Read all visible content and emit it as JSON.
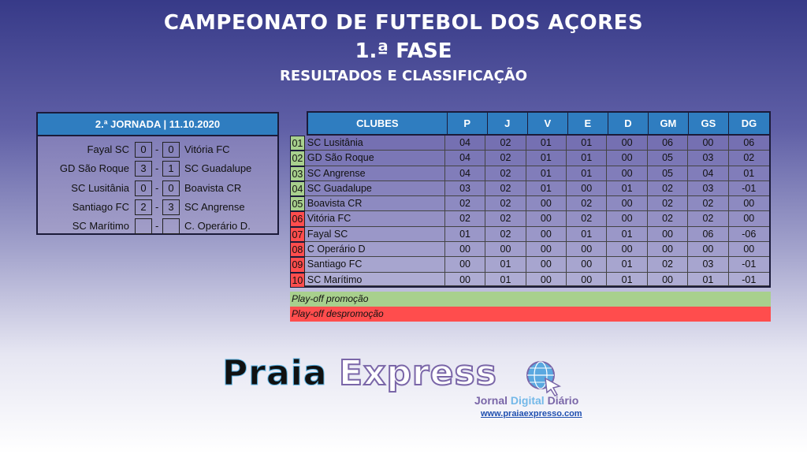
{
  "title": {
    "line1": "CAMPEONATO DE FUTEBOL DOS AÇORES",
    "line2": "1.ª  FASE",
    "line3": "RESULTADOS E CLASSIFICAÇÃO"
  },
  "games": {
    "header": "2.ª JORNADA | 11.10.2020",
    "separator": "-",
    "items": [
      {
        "home": "Fayal SC",
        "hs": "0",
        "as": "0",
        "away": "Vitória FC"
      },
      {
        "home": "GD São Roque",
        "hs": "3",
        "as": "1",
        "away": "SC Guadalupe"
      },
      {
        "home": "SC Lusitânia",
        "hs": "0",
        "as": "0",
        "away": "Boavista CR"
      },
      {
        "home": "Santiago FC",
        "hs": "2",
        "as": "3",
        "away": "SC Angrense"
      },
      {
        "home": "SC Marítimo",
        "hs": "",
        "as": "",
        "away": "C. Operário D."
      }
    ]
  },
  "standings": {
    "headers": [
      "CLUBES",
      "P",
      "J",
      "V",
      "E",
      "D",
      "GM",
      "GS",
      "DG"
    ],
    "rows": [
      {
        "rank": "01",
        "zone": "promo",
        "club": "SC Lusitânia",
        "v": [
          "04",
          "02",
          "01",
          "01",
          "00",
          "06",
          "00",
          "06"
        ]
      },
      {
        "rank": "02",
        "zone": "promo",
        "club": "GD São Roque",
        "v": [
          "04",
          "02",
          "01",
          "01",
          "00",
          "05",
          "03",
          "02"
        ]
      },
      {
        "rank": "03",
        "zone": "promo",
        "club": "SC Angrense",
        "v": [
          "04",
          "02",
          "01",
          "01",
          "00",
          "05",
          "04",
          "01"
        ]
      },
      {
        "rank": "04",
        "zone": "promo",
        "club": "SC Guadalupe",
        "v": [
          "03",
          "02",
          "01",
          "00",
          "01",
          "02",
          "03",
          "-01"
        ]
      },
      {
        "rank": "05",
        "zone": "promo",
        "club": "Boavista CR",
        "v": [
          "02",
          "02",
          "00",
          "02",
          "00",
          "02",
          "02",
          "00"
        ]
      },
      {
        "rank": "06",
        "zone": "releg",
        "club": "Vitória FC",
        "v": [
          "02",
          "02",
          "00",
          "02",
          "00",
          "02",
          "02",
          "00"
        ]
      },
      {
        "rank": "07",
        "zone": "releg",
        "club": "Fayal SC",
        "v": [
          "01",
          "02",
          "00",
          "01",
          "01",
          "00",
          "06",
          "-06"
        ]
      },
      {
        "rank": "08",
        "zone": "releg",
        "club": "C Operário D",
        "v": [
          "00",
          "00",
          "00",
          "00",
          "00",
          "00",
          "00",
          "00"
        ]
      },
      {
        "rank": "09",
        "zone": "releg",
        "club": "Santiago FC",
        "v": [
          "00",
          "01",
          "00",
          "00",
          "01",
          "02",
          "03",
          "-01"
        ]
      },
      {
        "rank": "10",
        "zone": "releg",
        "club": "SC Marítimo",
        "v": [
          "00",
          "01",
          "00",
          "00",
          "01",
          "00",
          "01",
          "-01"
        ]
      }
    ]
  },
  "legend": {
    "promo": "Play-off promoção",
    "releg": "Play-off despromoção",
    "promo_color": "#a8d08d",
    "releg_color": "#ff4d4d"
  },
  "logo": {
    "word1": "Praia",
    "word2": "Express",
    "tagline_a": "Jornal ",
    "tagline_b": "Digital",
    "tagline_c": " Diário",
    "url": "www.praiaexpresso.com"
  }
}
